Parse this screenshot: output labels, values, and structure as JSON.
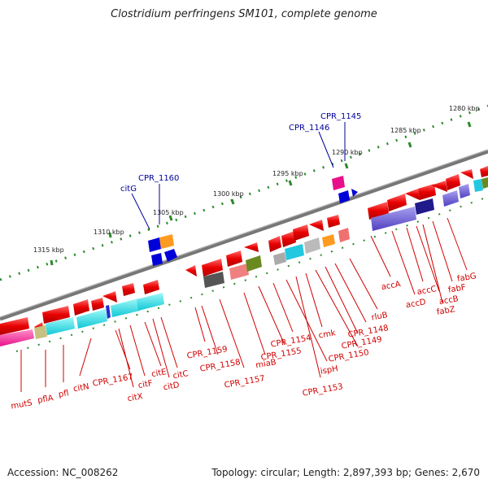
{
  "title": "Clostridium perfringens SM101, complete genome",
  "footer": {
    "accession": "Accession: NC_008262",
    "topology": "Topology: circular; Length: 2,897,393 bp; Genes: 2,670"
  },
  "ticks": [
    "1280 kbp",
    "1285 kbp",
    "1290 kbp",
    "1295 kbp",
    "1300 kbp",
    "1305 kbp",
    "1310 kbp",
    "1315 kbp"
  ],
  "genes_bottom": [
    "mutS",
    "pflA",
    "pfl",
    "citN",
    "CPR_1167",
    "citX",
    "citF",
    "citE",
    "citD",
    "citC",
    "CPR_1159",
    "CPR_1158",
    "CPR_1157",
    "miaB",
    "CPR_1155",
    "CPR_1154",
    "ispH",
    "CPR_1153",
    "cmk",
    "CPR_1150",
    "CPR_1149",
    "CPR_1148",
    "rluB",
    "accA",
    "accD",
    "accC",
    "accB",
    "fabZ",
    "fabF",
    "fabG"
  ],
  "genes_top": [
    "CPR_1145",
    "CPR_1146",
    "CPR_1160",
    "citG"
  ],
  "colors": {
    "red": "#e81010",
    "blue": "#0000d8",
    "cyan": "#22e0e0",
    "purple": "#6655cc",
    "label_red": "#d00000",
    "label_blue": "#00009a"
  }
}
